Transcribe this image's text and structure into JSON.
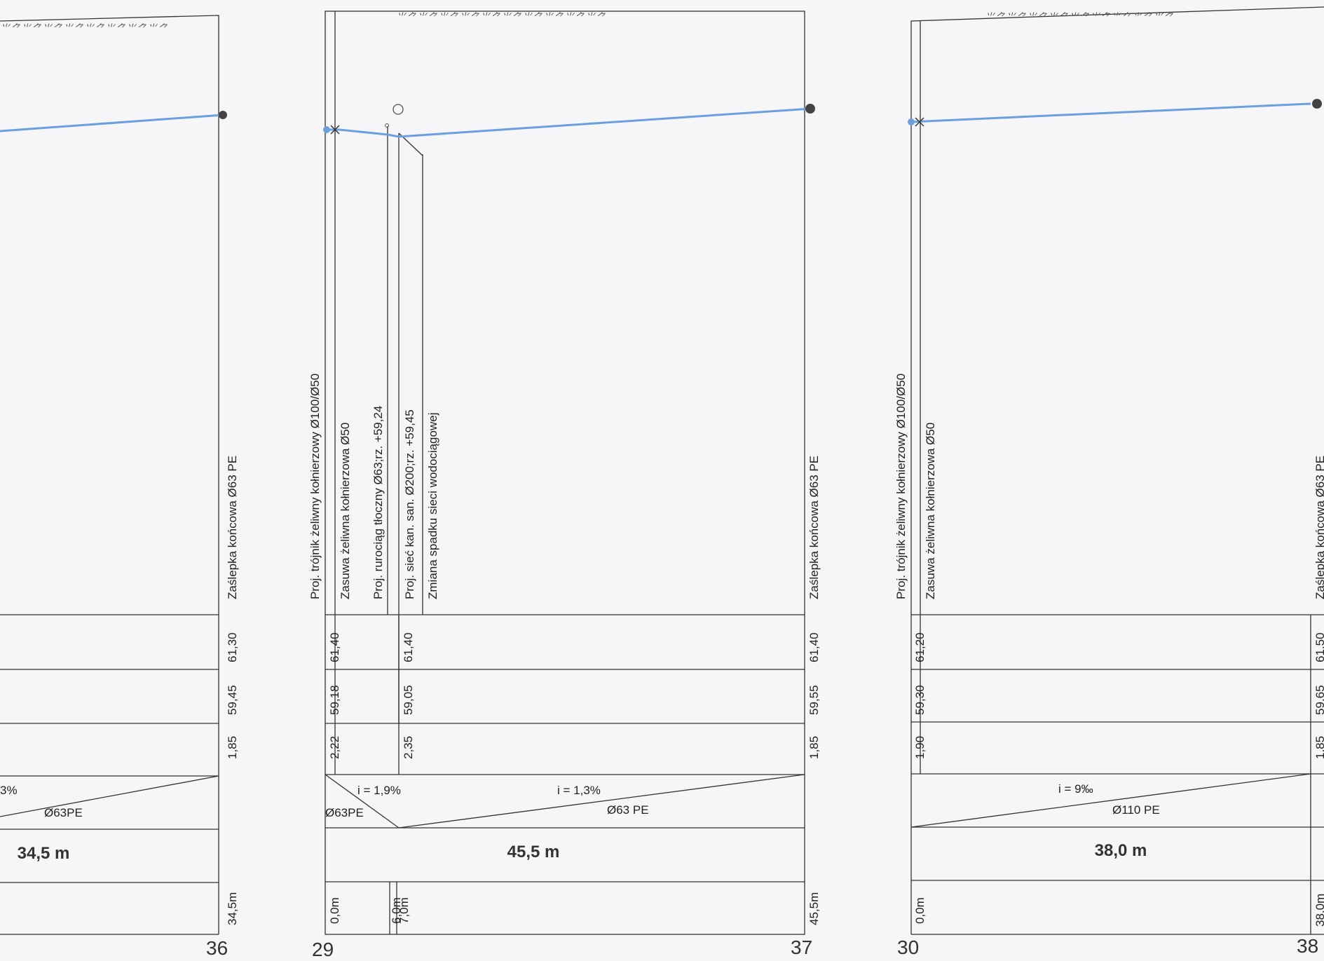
{
  "profiles": [
    {
      "start_station": "",
      "end_station": "36",
      "length": "34,5 m",
      "slope_labels": [
        "3%"
      ],
      "pipe_labels": [
        "Ø63PE"
      ],
      "annotations": [
        "Zaślepka końcowa Ø63 PE"
      ],
      "rows": {
        "terrain": [
          "61,30"
        ],
        "pipe_axis": [
          "59,45"
        ],
        "depth": [
          "1,85"
        ],
        "distance": [
          "34,5m"
        ]
      }
    },
    {
      "start_station": "29",
      "end_station": "37",
      "length": "45,5 m",
      "slope_labels": [
        "i = 1,9%",
        "i = 1,3%"
      ],
      "pipe_labels": [
        "Ø63PE",
        "Ø63 PE"
      ],
      "annotations": [
        "Proj. trójnik żeliwny kołnierzowy Ø100/Ø50",
        "Zasuwa żeliwna kołnierzowa Ø50",
        "Proj. rurociąg tłoczny Ø63;rz. +59,24",
        "Proj. sieć kan. san. Ø200;rz. +59,45",
        "Zmiana spadku sieci wodociągowej",
        "Zaślepka końcowa Ø63 PE"
      ],
      "rows": {
        "terrain": [
          "61,40",
          "61,40",
          "61,40"
        ],
        "pipe_axis": [
          "59,18",
          "59,05",
          "59,55"
        ],
        "depth": [
          "2,22",
          "2,35",
          "1,85"
        ],
        "distance": [
          "0,0m",
          "6,0m",
          "7,0m",
          "45,5m"
        ]
      }
    },
    {
      "start_station": "30",
      "end_station": "38",
      "length": "38,0 m",
      "slope_labels": [
        "i = 9‰"
      ],
      "pipe_labels": [
        "Ø110 PE"
      ],
      "annotations": [
        "Proj. trójnik żeliwny kołnierzowy Ø100/Ø50",
        "Zasuwa żeliwna kołnierzowa Ø50",
        "Zaślepka końcowa Ø63 PE"
      ],
      "rows": {
        "terrain": [
          "61,20",
          "61,50"
        ],
        "pipe_axis": [
          "59,30",
          "59,65"
        ],
        "depth": [
          "1,90",
          "1,85"
        ],
        "distance": [
          "0,0m",
          "38,0m"
        ]
      }
    }
  ],
  "colors": {
    "pipe": "#6aa0e0",
    "line": "#333333",
    "paper": "#f6f5f7"
  }
}
